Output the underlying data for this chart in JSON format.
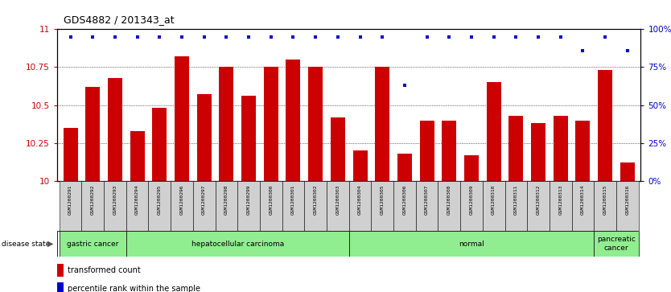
{
  "title": "GDS4882 / 201343_at",
  "samples": [
    "GSM1200291",
    "GSM1200292",
    "GSM1200293",
    "GSM1200294",
    "GSM1200295",
    "GSM1200296",
    "GSM1200297",
    "GSM1200298",
    "GSM1200299",
    "GSM1200300",
    "GSM1200301",
    "GSM1200302",
    "GSM1200303",
    "GSM1200304",
    "GSM1200305",
    "GSM1200306",
    "GSM1200307",
    "GSM1200308",
    "GSM1200309",
    "GSM1200310",
    "GSM1200311",
    "GSM1200312",
    "GSM1200313",
    "GSM1200314",
    "GSM1200315",
    "GSM1200316"
  ],
  "bar_values": [
    10.35,
    10.62,
    10.68,
    10.33,
    10.48,
    10.82,
    10.57,
    10.75,
    10.56,
    10.75,
    10.8,
    10.75,
    10.42,
    10.2,
    10.75,
    10.18,
    10.4,
    10.4,
    10.17,
    10.65,
    10.43,
    10.38,
    10.43,
    10.4,
    10.73,
    10.12
  ],
  "percentile_y": [
    95,
    95,
    95,
    95,
    95,
    95,
    95,
    95,
    95,
    95,
    95,
    95,
    95,
    95,
    95,
    63,
    95,
    95,
    95,
    95,
    95,
    95,
    95,
    86,
    95,
    86
  ],
  "bar_color": "#cc0000",
  "percentile_color": "#0000cc",
  "ylim": [
    10.0,
    11.0
  ],
  "yticks": [
    10.0,
    10.25,
    10.5,
    10.75,
    11.0
  ],
  "ytick_labels": [
    "10",
    "10.25",
    "10.5",
    "10.75",
    "11"
  ],
  "right_yticks": [
    0,
    25,
    50,
    75,
    100
  ],
  "right_ytick_labels": [
    "0%",
    "25%",
    "50%",
    "75%",
    "100%"
  ],
  "disease_groups": [
    {
      "label": "gastric cancer",
      "start": 0,
      "end": 3,
      "color": "#90ee90"
    },
    {
      "label": "hepatocellular carcinoma",
      "start": 3,
      "end": 13,
      "color": "#90ee90"
    },
    {
      "label": "normal",
      "start": 13,
      "end": 24,
      "color": "#90ee90"
    },
    {
      "label": "pancreatic\ncancer",
      "start": 24,
      "end": 26,
      "color": "#90ee90"
    }
  ],
  "disease_state_label": "disease state",
  "legend_bar_label": "transformed count",
  "legend_pct_label": "percentile rank within the sample",
  "grid_color": "#555555",
  "tick_label_color_left": "#cc0000",
  "tick_label_color_right": "#0000cc"
}
